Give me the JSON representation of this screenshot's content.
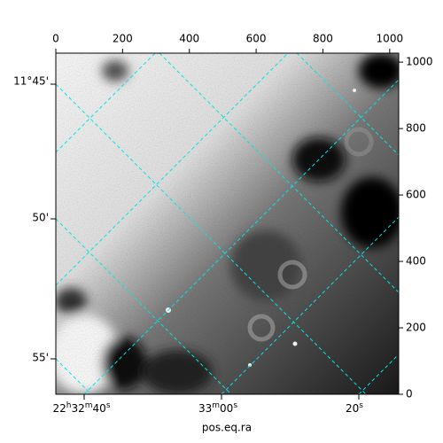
{
  "chart_data": {
    "type": "image",
    "xlabel": "pos.eq.ra",
    "xlim": [
      0,
      1027
    ],
    "ylim": [
      0,
      1027
    ],
    "xticks": [
      0,
      200,
      400,
      600,
      800,
      1000
    ],
    "yticks": [
      0,
      200,
      400,
      600,
      800,
      1000
    ],
    "ra_ticks": [
      "22h32m40s",
      "33m00s",
      "20s"
    ],
    "dec_ticks": [
      "11°45'",
      "50'",
      "55'"
    ]
  }
}
